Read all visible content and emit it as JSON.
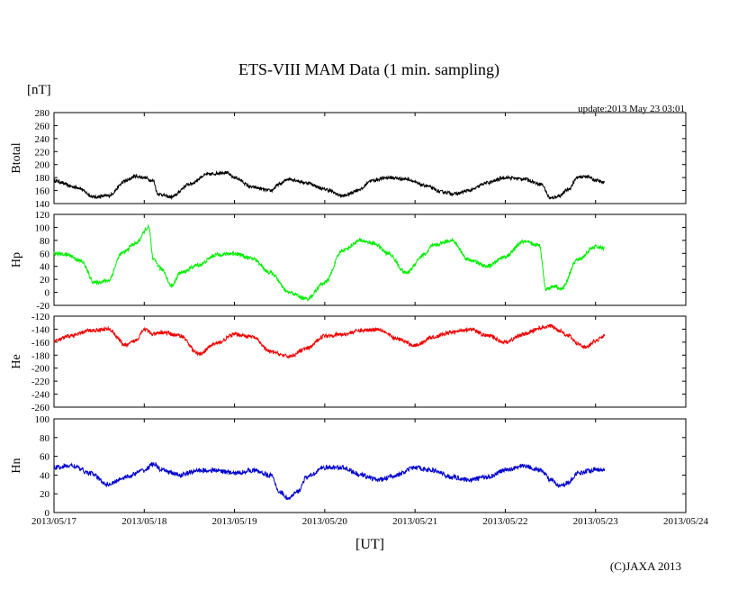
{
  "title": "ETS-VIII MAM Data (1 min. sampling)",
  "unit_label": "[nT]",
  "update_text": "update:2013 May 23 03:01",
  "xlabel": "[UT]",
  "copyright": "(C)JAXA 2013",
  "colors": {
    "btotal": "#000000",
    "hp": "#00ee00",
    "he": "#ee0000",
    "hn": "#0000cc"
  },
  "chart_data": {
    "type": "line",
    "x_unit": "days since 2013/05/17 00:00 UT",
    "xlim": [
      0,
      7
    ],
    "x_ticks": [
      {
        "x": 0,
        "label": "2013/05/17"
      },
      {
        "x": 1,
        "label": "2013/05/18"
      },
      {
        "x": 2,
        "label": "2013/05/19"
      },
      {
        "x": 3,
        "label": "2013/05/20"
      },
      {
        "x": 4,
        "label": "2013/05/21"
      },
      {
        "x": 5,
        "label": "2013/05/22"
      },
      {
        "x": 6,
        "label": "2013/05/23"
      },
      {
        "x": 7,
        "label": "2013/05/24"
      }
    ],
    "panels": [
      {
        "key": "btotal",
        "ylabel": "Btotal",
        "ylim": [
          140,
          280
        ],
        "yticks": [
          "140",
          "160",
          "180",
          "200",
          "220",
          "240",
          "260",
          "280"
        ],
        "ytick_values": [
          140,
          160,
          180,
          200,
          220,
          240,
          260,
          280
        ],
        "color": "#000000",
        "noise": 2.5,
        "x": [
          0,
          0.25,
          0.45,
          0.6,
          0.8,
          0.9,
          1.0,
          1.1,
          1.15,
          1.3,
          1.5,
          1.7,
          1.9,
          2.0,
          2.2,
          2.4,
          2.5,
          2.6,
          2.8,
          3.0,
          3.2,
          3.4,
          3.5,
          3.7,
          3.9,
          4.1,
          4.3,
          4.45,
          4.6,
          4.8,
          5.0,
          5.2,
          5.4,
          5.5,
          5.6,
          5.7,
          5.8,
          5.9,
          6.0,
          6.1
        ],
        "values": [
          175,
          165,
          150,
          152,
          175,
          182,
          180,
          175,
          155,
          150,
          170,
          185,
          188,
          180,
          165,
          160,
          170,
          178,
          172,
          162,
          152,
          162,
          175,
          180,
          178,
          168,
          158,
          155,
          160,
          172,
          180,
          178,
          170,
          148,
          152,
          162,
          180,
          182,
          176,
          172
        ]
      },
      {
        "key": "hp",
        "ylabel": "Hp",
        "ylim": [
          -20,
          120
        ],
        "yticks": [
          "-20",
          "0",
          "20",
          "40",
          "60",
          "80",
          "100",
          "120"
        ],
        "ytick_values": [
          -20,
          0,
          20,
          40,
          60,
          80,
          100,
          120
        ],
        "color": "#00ee00",
        "noise": 3,
        "x": [
          0,
          0.15,
          0.3,
          0.45,
          0.6,
          0.75,
          0.9,
          1.05,
          1.1,
          1.2,
          1.3,
          1.4,
          1.6,
          1.8,
          2.0,
          2.2,
          2.4,
          2.6,
          2.8,
          3.0,
          3.2,
          3.4,
          3.55,
          3.7,
          3.9,
          4.1,
          4.2,
          4.4,
          4.6,
          4.8,
          5.0,
          5.2,
          5.38,
          5.45,
          5.55,
          5.62,
          5.8,
          6.0,
          6.1
        ],
        "values": [
          60,
          58,
          48,
          15,
          18,
          60,
          75,
          100,
          50,
          35,
          10,
          30,
          42,
          58,
          60,
          52,
          30,
          0,
          -10,
          15,
          65,
          80,
          75,
          60,
          30,
          58,
          72,
          80,
          50,
          40,
          55,
          78,
          72,
          5,
          10,
          5,
          50,
          70,
          68
        ]
      },
      {
        "key": "he",
        "ylabel": "He",
        "ylim": [
          -260,
          -120
        ],
        "yticks": [
          "-260",
          "-240",
          "-220",
          "-200",
          "-180",
          "-160",
          "-140",
          "-120"
        ],
        "ytick_values": [
          -260,
          -240,
          -220,
          -200,
          -180,
          -160,
          -140,
          -120
        ],
        "color": "#ee0000",
        "noise": 3,
        "x": [
          0,
          0.2,
          0.4,
          0.6,
          0.8,
          0.9,
          1.0,
          1.1,
          1.2,
          1.4,
          1.6,
          1.8,
          2.0,
          2.2,
          2.4,
          2.6,
          2.8,
          3.0,
          3.2,
          3.4,
          3.6,
          3.8,
          4.0,
          4.2,
          4.4,
          4.6,
          4.8,
          5.0,
          5.2,
          5.4,
          5.5,
          5.6,
          5.7,
          5.8,
          5.9,
          6.0,
          6.1
        ],
        "values": [
          -158,
          -150,
          -142,
          -140,
          -165,
          -158,
          -140,
          -148,
          -145,
          -150,
          -178,
          -162,
          -148,
          -152,
          -175,
          -182,
          -170,
          -150,
          -148,
          -142,
          -140,
          -155,
          -165,
          -152,
          -145,
          -140,
          -150,
          -160,
          -148,
          -138,
          -135,
          -142,
          -150,
          -162,
          -168,
          -158,
          -150
        ]
      },
      {
        "key": "hn",
        "ylabel": "Hn",
        "ylim": [
          0,
          100
        ],
        "yticks": [
          "0",
          "20",
          "40",
          "60",
          "80",
          "100"
        ],
        "ytick_values": [
          0,
          20,
          40,
          60,
          80,
          100
        ],
        "color": "#0000cc",
        "noise": 2.5,
        "x": [
          0,
          0.2,
          0.4,
          0.6,
          0.8,
          1.0,
          1.1,
          1.2,
          1.4,
          1.6,
          1.8,
          2.0,
          2.2,
          2.4,
          2.5,
          2.6,
          2.7,
          2.8,
          3.0,
          3.2,
          3.4,
          3.6,
          3.8,
          4.0,
          4.2,
          4.4,
          4.6,
          4.8,
          5.0,
          5.2,
          5.4,
          5.5,
          5.6,
          5.7,
          5.8,
          6.0,
          6.1
        ],
        "values": [
          48,
          50,
          42,
          30,
          38,
          45,
          52,
          45,
          40,
          45,
          45,
          42,
          45,
          40,
          22,
          15,
          22,
          38,
          48,
          48,
          40,
          35,
          40,
          48,
          45,
          38,
          35,
          38,
          45,
          50,
          45,
          35,
          28,
          32,
          42,
          46,
          46
        ]
      }
    ]
  }
}
